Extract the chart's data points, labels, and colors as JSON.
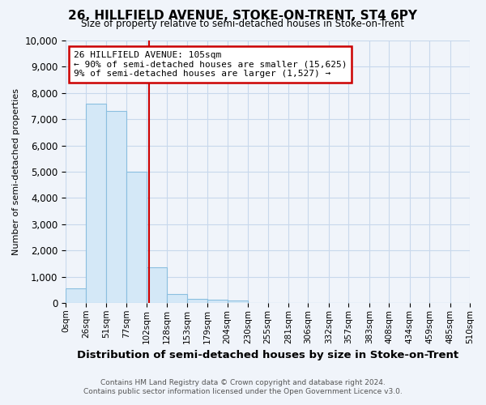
{
  "title": "26, HILLFIELD AVENUE, STOKE-ON-TRENT, ST4 6PY",
  "subtitle": "Size of property relative to semi-detached houses in Stoke-on-Trent",
  "xlabel": "Distribution of semi-detached houses by size in Stoke-on-Trent",
  "ylabel": "Number of semi-detached properties",
  "footer_line1": "Contains HM Land Registry data © Crown copyright and database right 2024.",
  "footer_line2": "Contains public sector information licensed under the Open Government Licence v3.0.",
  "bin_edges": [
    0,
    26,
    51,
    77,
    102,
    128,
    153,
    179,
    204,
    230,
    255,
    281,
    306,
    332,
    357,
    383,
    408,
    434,
    459,
    485,
    510
  ],
  "bar_heights": [
    560,
    7600,
    7300,
    5000,
    1350,
    330,
    160,
    120,
    80,
    0,
    0,
    0,
    0,
    0,
    0,
    0,
    0,
    0,
    0,
    0
  ],
  "bar_color": "#d4e8f7",
  "bar_edgecolor": "#8bbfe0",
  "property_size": 105,
  "redline_color": "#cc0000",
  "annotation_line1": "26 HILLFIELD AVENUE: 105sqm",
  "annotation_line2": "← 90% of semi-detached houses are smaller (15,625)",
  "annotation_line3": "9% of semi-detached houses are larger (1,527) →",
  "annotation_box_edgecolor": "#cc0000",
  "annotation_box_facecolor": "white",
  "ylim": [
    0,
    10000
  ],
  "yticks": [
    0,
    1000,
    2000,
    3000,
    4000,
    5000,
    6000,
    7000,
    8000,
    9000,
    10000
  ],
  "tick_labels": [
    "0sqm",
    "26sqm",
    "51sqm",
    "77sqm",
    "102sqm",
    "128sqm",
    "153sqm",
    "179sqm",
    "204sqm",
    "230sqm",
    "255sqm",
    "281sqm",
    "306sqm",
    "332sqm",
    "357sqm",
    "383sqm",
    "408sqm",
    "434sqm",
    "459sqm",
    "485sqm",
    "510sqm"
  ],
  "background_color": "#f0f4fa",
  "grid_color": "#c8d8ec"
}
